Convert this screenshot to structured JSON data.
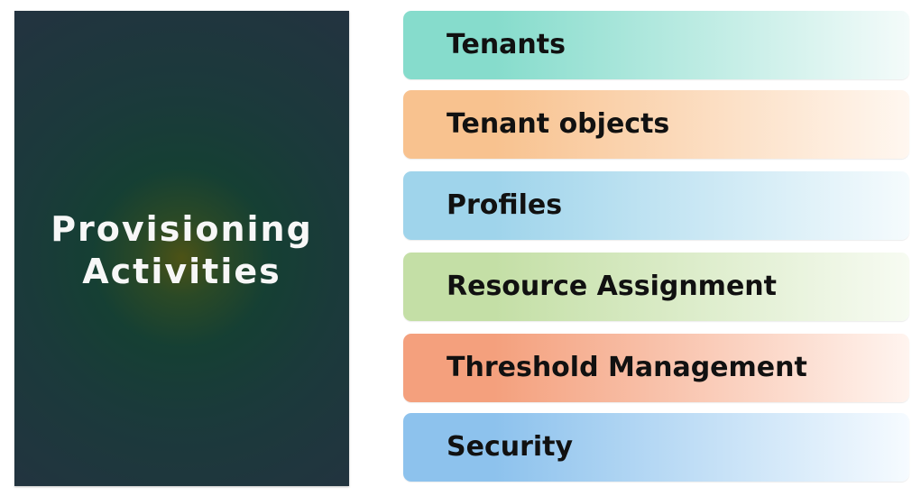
{
  "main_panel": {
    "title": "Provisioning\nActivities"
  },
  "activities": [
    {
      "label": "Tenants",
      "color_start": "#86dccc",
      "color_end": "#f4fbfa"
    },
    {
      "label": "Tenant objects",
      "color_start": "#f8c28f",
      "color_end": "#fff7f0"
    },
    {
      "label": "Profiles",
      "color_start": "#9fd4eb",
      "color_end": "#f5fbfd"
    },
    {
      "label": "Resource Assignment",
      "color_start": "#c4dfa6",
      "color_end": "#f7fbf2"
    },
    {
      "label": "Threshold Management",
      "color_start": "#f4a07d",
      "color_end": "#fff4ef"
    },
    {
      "label": "Security",
      "color_start": "#8dc2ed",
      "color_end": "#f6fbff"
    }
  ]
}
